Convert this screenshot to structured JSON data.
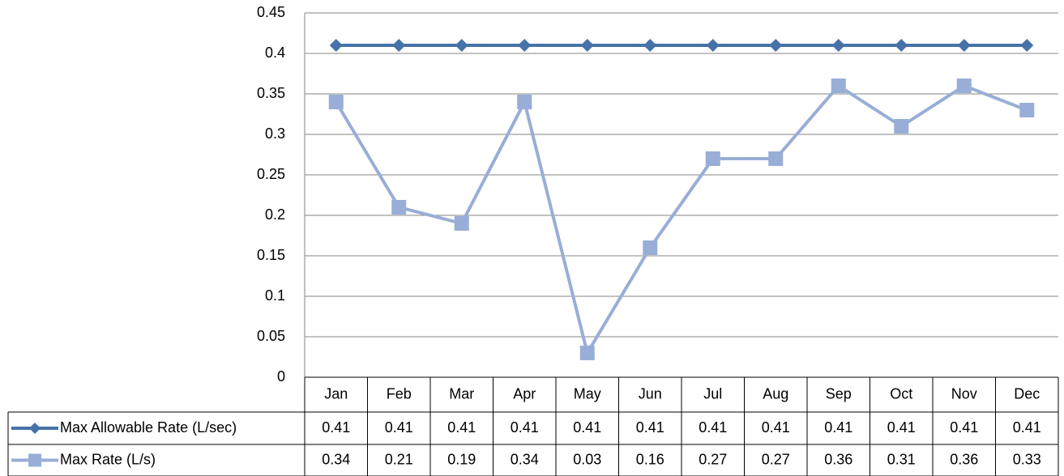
{
  "chart_data": {
    "type": "line",
    "categories": [
      "Jan",
      "Feb",
      "Mar",
      "Apr",
      "May",
      "Jun",
      "Jul",
      "Aug",
      "Sep",
      "Oct",
      "Nov",
      "Dec"
    ],
    "series": [
      {
        "name": "Max Allowable Rate (L/sec)",
        "color": "#4672a8",
        "marker": "diamond",
        "values": [
          0.41,
          0.41,
          0.41,
          0.41,
          0.41,
          0.41,
          0.41,
          0.41,
          0.41,
          0.41,
          0.41,
          0.41
        ]
      },
      {
        "name": "Max Rate (L/s)",
        "color": "#98aed6",
        "marker": "square",
        "values": [
          0.34,
          0.21,
          0.19,
          0.34,
          0.03,
          0.16,
          0.27,
          0.27,
          0.36,
          0.31,
          0.36,
          0.33
        ]
      }
    ],
    "ylim": [
      0,
      0.45
    ],
    "yticks": [
      0,
      0.05,
      0.1,
      0.15,
      0.2,
      0.25,
      0.3,
      0.35,
      0.4,
      0.45
    ],
    "grid": true,
    "legend": "table"
  }
}
